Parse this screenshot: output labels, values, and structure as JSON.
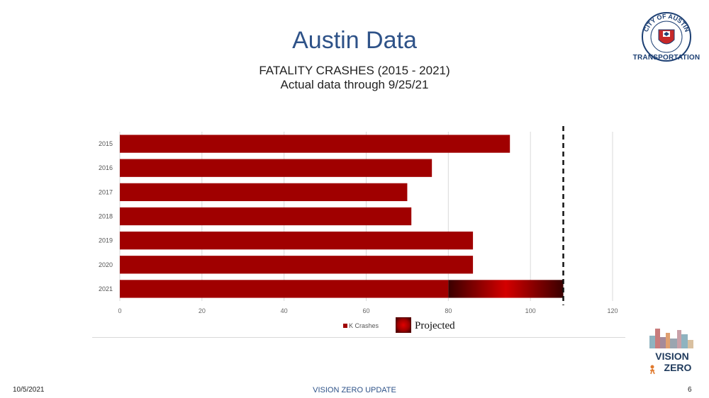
{
  "header": {
    "title": "Austin Data",
    "subtitle_line1": "FATALITY CRASHES (2015 - 2021)",
    "subtitle_line2": "Actual data through 9/25/21"
  },
  "logos": {
    "city_ring_text": "CITY OF AUSTIN",
    "city_label": "TRANSPORTATION",
    "vision_zero_line1": "VISION",
    "vision_zero_line2": "ZERO"
  },
  "footer": {
    "date": "10/5/2021",
    "center": "VISION ZERO UPDATE",
    "page": "6"
  },
  "colors": {
    "bar": "#a00000",
    "projected_dark": "#3a0000",
    "projected_light": "#d40000",
    "title": "#2e5288",
    "grid": "#d9d9d9"
  },
  "chart_data": {
    "type": "bar",
    "orientation": "horizontal",
    "categories": [
      "2015",
      "2016",
      "2017",
      "2018",
      "2019",
      "2020",
      "2021"
    ],
    "series": [
      {
        "name": "K Crashes",
        "values": [
          95,
          76,
          70,
          71,
          86,
          86,
          80
        ]
      },
      {
        "name": "Projected",
        "values": [
          0,
          0,
          0,
          0,
          0,
          0,
          28
        ]
      }
    ],
    "reference_line": 108,
    "xlim": [
      0,
      120
    ],
    "xticks": [
      "0",
      "20",
      "40",
      "60",
      "80",
      "100",
      "120"
    ],
    "grid": true,
    "legend": {
      "position": "bottom",
      "labels": [
        "K Crashes",
        "Projected"
      ]
    }
  }
}
